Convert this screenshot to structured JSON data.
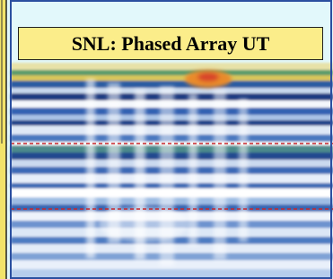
{
  "title": "SNL: Phased Array UT"
}
